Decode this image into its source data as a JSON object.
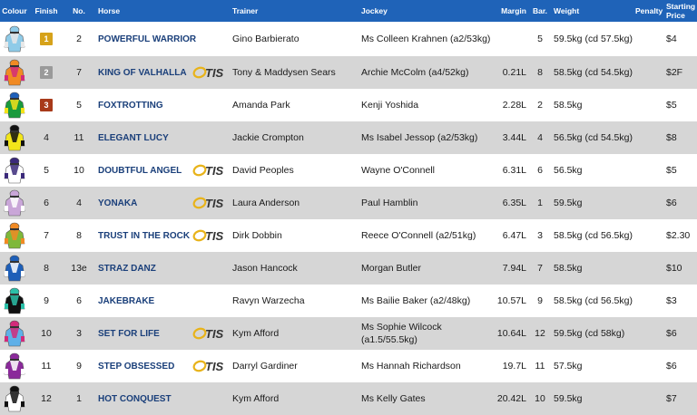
{
  "header": {
    "colour": "Colour",
    "finish": "Finish",
    "no": "No.",
    "horse": "Horse",
    "trainer": "Trainer",
    "jockey": "Jockey",
    "margin": "Margin",
    "bar": "Bar.",
    "weight": "Weight",
    "penalty": "Penalty",
    "starting_price": "Starting Price"
  },
  "otis_text": "TIS",
  "rows": [
    {
      "finish": "1",
      "no": "2",
      "horse": "POWERFUL WARRIOR",
      "otis": false,
      "trainer": "Gino Barbierato",
      "jockey": "Ms Colleen Krahnen (a2/53kg)",
      "margin": "",
      "bar": "5",
      "weight": "59.5kg (cd 57.5kg)",
      "penalty": "",
      "sp": "$4",
      "silk": {
        "body": "#8fcbe8",
        "accent": "#e8e8e8",
        "cap": "#8fcbe8"
      }
    },
    {
      "finish": "2",
      "no": "7",
      "horse": "KING OF VALHALLA",
      "otis": true,
      "trainer": "Tony & Maddysen Sears",
      "jockey": "Archie McColm (a4/52kg)",
      "margin": "0.21L",
      "bar": "8",
      "weight": "58.5kg (cd 54.5kg)",
      "penalty": "",
      "sp": "$2F",
      "silk": {
        "body": "#f08a24",
        "accent": "#d22b7a",
        "cap": "#f08a24"
      }
    },
    {
      "finish": "3",
      "no": "5",
      "horse": "FOXTROTTING",
      "otis": false,
      "trainer": "Amanda Park",
      "jockey": "Kenji Yoshida",
      "margin": "2.28L",
      "bar": "2",
      "weight": "58.5kg",
      "penalty": "",
      "sp": "$5",
      "silk": {
        "body": "#1a9a3c",
        "accent": "#f4e21a",
        "cap": "#1e5fb8"
      }
    },
    {
      "finish": "4",
      "no": "11",
      "horse": "ELEGANT LUCY",
      "otis": false,
      "trainer": "Jackie Crompton",
      "jockey": "Ms Isabel Jessop (a2/53kg)",
      "margin": "3.44L",
      "bar": "4",
      "weight": "56.5kg (cd 54.5kg)",
      "penalty": "",
      "sp": "$8",
      "silk": {
        "body": "#f2e51a",
        "accent": "#111111",
        "cap": "#111111"
      }
    },
    {
      "finish": "5",
      "no": "10",
      "horse": "DOUBTFUL ANGEL",
      "otis": true,
      "trainer": "David Peoples",
      "jockey": "Wayne O'Connell",
      "margin": "6.31L",
      "bar": "6",
      "weight": "56.5kg",
      "penalty": "",
      "sp": "$5",
      "silk": {
        "body": "#ffffff",
        "accent": "#3b2a7a",
        "cap": "#3b2a7a"
      }
    },
    {
      "finish": "6",
      "no": "4",
      "horse": "YONAKA",
      "otis": true,
      "trainer": "Laura Anderson",
      "jockey": "Paul Hamblin",
      "margin": "6.35L",
      "bar": "1",
      "weight": "59.5kg",
      "penalty": "",
      "sp": "$6",
      "silk": {
        "body": "#c9a6d8",
        "accent": "#ffffff",
        "cap": "#c9a6d8"
      }
    },
    {
      "finish": "7",
      "no": "8",
      "horse": "TRUST IN THE ROCK",
      "otis": true,
      "trainer": "Dirk Dobbin",
      "jockey": "Reece O'Connell (a2/51kg)",
      "margin": "6.47L",
      "bar": "3",
      "weight": "58.5kg (cd 56.5kg)",
      "penalty": "",
      "sp": "$2.30",
      "silk": {
        "body": "#7fb83a",
        "accent": "#f08a24",
        "cap": "#f08a24"
      }
    },
    {
      "finish": "8",
      "no": "13e",
      "horse": "STRAZ DANZ",
      "otis": false,
      "trainer": "Jason Hancock",
      "jockey": "Morgan Butler",
      "margin": "7.94L",
      "bar": "7",
      "weight": "58.5kg",
      "penalty": "",
      "sp": "$10",
      "silk": {
        "body": "#1e5fb8",
        "accent": "#ffffff",
        "cap": "#1e5fb8"
      }
    },
    {
      "finish": "9",
      "no": "6",
      "horse": "JAKEBRAKE",
      "otis": false,
      "trainer": "Ravyn Warzecha",
      "jockey": "Ms Bailie Baker (a2/48kg)",
      "margin": "10.57L",
      "bar": "9",
      "weight": "58.5kg (cd 56.5kg)",
      "penalty": "",
      "sp": "$3",
      "silk": {
        "body": "#111111",
        "accent": "#2bbfa8",
        "cap": "#2bbfa8"
      }
    },
    {
      "finish": "10",
      "no": "3",
      "horse": "SET FOR LIFE",
      "otis": true,
      "trainer": "Kym Afford",
      "jockey": "Ms Sophie Wilcock (a1.5/55.5kg)",
      "margin": "10.64L",
      "bar": "12",
      "weight": "59.5kg (cd 58kg)",
      "penalty": "",
      "sp": "$6",
      "silk": {
        "body": "#5fb0e8",
        "accent": "#d22b7a",
        "cap": "#d22b7a"
      }
    },
    {
      "finish": "11",
      "no": "9",
      "horse": "STEP OBSESSED",
      "otis": true,
      "trainer": "Darryl Gardiner",
      "jockey": "Ms Hannah Richardson",
      "margin": "19.7L",
      "bar": "11",
      "weight": "57.5kg",
      "penalty": "",
      "sp": "$6",
      "silk": {
        "body": "#8a2a9a",
        "accent": "#ffffff",
        "cap": "#8a2a9a"
      }
    },
    {
      "finish": "12",
      "no": "1",
      "horse": "HOT CONQUEST",
      "otis": false,
      "trainer": "Kym Afford",
      "jockey": "Ms Kelly Gates",
      "margin": "20.42L",
      "bar": "10",
      "weight": "59.5kg",
      "penalty": "",
      "sp": "$7",
      "silk": {
        "body": "#ffffff",
        "accent": "#111111",
        "cap": "#111111"
      }
    }
  ],
  "colors": {
    "header_bg": "#1f63b8",
    "row_alt": "#d6d6d6",
    "horse_name": "#1a3f7a",
    "gold": "#d6a21a",
    "silver": "#9a9a9a",
    "bronze": "#a83a1a",
    "otis_ring": "#e8b31a",
    "otis_text": "#333333"
  }
}
